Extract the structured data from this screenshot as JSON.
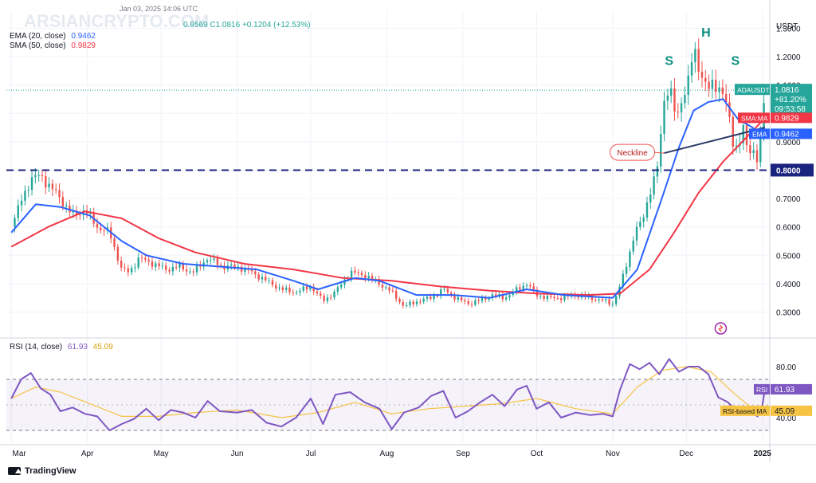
{
  "header": {
    "watermark": "ARSIANCRYPTO.COM",
    "date_stamp": "Jan 03, 2025 14:06 UTC",
    "ohlc_line": "0.9569  C1.0816  +0.1204 (+12.53%)",
    "ema_label": "EMA (20, close)",
    "ema_value": "0.9462",
    "sma_label": "SMA (50, close)",
    "sma_value": "0.9829",
    "currency": "USDT"
  },
  "colors": {
    "up": "#26a69a",
    "down": "#ef5350",
    "ema": "#2962ff",
    "sma": "#f23645",
    "neckline": "#2a3a66",
    "support": "#1a237e",
    "rsi": "#7e57c2",
    "rsi_ma": "#f6c343",
    "pattern_label": "#0b8f7f",
    "grid": "#f0f3fa",
    "axis_text": "#131722",
    "price_tag": "#26a69a"
  },
  "chart_data": [
    {
      "type": "candlestick",
      "title": "",
      "symbol": "ADAUSDT",
      "ylabel": "USDT",
      "ylim": [
        0.22,
        1.36
      ],
      "y_ticks": [
        0.3,
        0.4,
        0.5,
        0.6,
        0.7,
        0.8,
        0.9,
        1.0,
        1.1,
        1.2,
        1.3
      ],
      "y_tick_labels": [
        "0.3000",
        "0.4000",
        "0.5000",
        "0.6000",
        "0.7000",
        "0.8000",
        "0.9000",
        "1.0000",
        "1.1000",
        "1.2000",
        "1.3000"
      ],
      "x_ticks": [
        "Mar",
        "Apr",
        "May",
        "Jun",
        "Jul",
        "Aug",
        "Sep",
        "Oct",
        "Nov",
        "Dec",
        "2025"
      ],
      "x_tick_days": [
        0,
        31,
        61,
        92,
        122,
        153,
        184,
        214,
        245,
        275,
        306
      ],
      "x_range_days": [
        -2,
        309
      ],
      "close_path": [
        {
          "d": 0,
          "v": 0.6
        },
        {
          "d": 4,
          "v": 0.69
        },
        {
          "d": 8,
          "v": 0.77
        },
        {
          "d": 12,
          "v": 0.78
        },
        {
          "d": 16,
          "v": 0.74
        },
        {
          "d": 20,
          "v": 0.7
        },
        {
          "d": 25,
          "v": 0.64
        },
        {
          "d": 30,
          "v": 0.66
        },
        {
          "d": 35,
          "v": 0.6
        },
        {
          "d": 40,
          "v": 0.58
        },
        {
          "d": 45,
          "v": 0.45
        },
        {
          "d": 48,
          "v": 0.44
        },
        {
          "d": 52,
          "v": 0.49
        },
        {
          "d": 58,
          "v": 0.47
        },
        {
          "d": 63,
          "v": 0.45
        },
        {
          "d": 68,
          "v": 0.46
        },
        {
          "d": 74,
          "v": 0.44
        },
        {
          "d": 80,
          "v": 0.49
        },
        {
          "d": 86,
          "v": 0.46
        },
        {
          "d": 92,
          "v": 0.46
        },
        {
          "d": 98,
          "v": 0.44
        },
        {
          "d": 104,
          "v": 0.41
        },
        {
          "d": 110,
          "v": 0.38
        },
        {
          "d": 116,
          "v": 0.37
        },
        {
          "d": 122,
          "v": 0.39
        },
        {
          "d": 127,
          "v": 0.34
        },
        {
          "d": 132,
          "v": 0.37
        },
        {
          "d": 138,
          "v": 0.44
        },
        {
          "d": 144,
          "v": 0.43
        },
        {
          "d": 150,
          "v": 0.4
        },
        {
          "d": 155,
          "v": 0.37
        },
        {
          "d": 160,
          "v": 0.32
        },
        {
          "d": 166,
          "v": 0.34
        },
        {
          "d": 171,
          "v": 0.35
        },
        {
          "d": 176,
          "v": 0.38
        },
        {
          "d": 181,
          "v": 0.35
        },
        {
          "d": 186,
          "v": 0.33
        },
        {
          "d": 191,
          "v": 0.34
        },
        {
          "d": 196,
          "v": 0.36
        },
        {
          "d": 201,
          "v": 0.35
        },
        {
          "d": 206,
          "v": 0.38
        },
        {
          "d": 210,
          "v": 0.4
        },
        {
          "d": 214,
          "v": 0.36
        },
        {
          "d": 219,
          "v": 0.35
        },
        {
          "d": 224,
          "v": 0.35
        },
        {
          "d": 230,
          "v": 0.36
        },
        {
          "d": 236,
          "v": 0.35
        },
        {
          "d": 241,
          "v": 0.34
        },
        {
          "d": 245,
          "v": 0.33
        },
        {
          "d": 248,
          "v": 0.39
        },
        {
          "d": 251,
          "v": 0.48
        },
        {
          "d": 254,
          "v": 0.58
        },
        {
          "d": 257,
          "v": 0.62
        },
        {
          "d": 260,
          "v": 0.72
        },
        {
          "d": 263,
          "v": 0.79
        },
        {
          "d": 266,
          "v": 1.05
        },
        {
          "d": 268,
          "v": 1.1
        },
        {
          "d": 271,
          "v": 0.97
        },
        {
          "d": 273,
          "v": 1.05
        },
        {
          "d": 276,
          "v": 1.12
        },
        {
          "d": 278,
          "v": 1.22
        },
        {
          "d": 280,
          "v": 1.17
        },
        {
          "d": 282,
          "v": 1.12
        },
        {
          "d": 284,
          "v": 1.08
        },
        {
          "d": 286,
          "v": 1.1
        },
        {
          "d": 288,
          "v": 1.1
        },
        {
          "d": 290,
          "v": 1.07
        },
        {
          "d": 292,
          "v": 1.0
        },
        {
          "d": 294,
          "v": 0.9
        },
        {
          "d": 296,
          "v": 0.88
        },
        {
          "d": 298,
          "v": 0.95
        },
        {
          "d": 300,
          "v": 0.86
        },
        {
          "d": 302,
          "v": 0.88
        },
        {
          "d": 304,
          "v": 0.84
        },
        {
          "d": 306,
          "v": 0.96
        },
        {
          "d": 307,
          "v": 1.08
        }
      ],
      "ema_20": [
        {
          "d": 0,
          "v": 0.58
        },
        {
          "d": 10,
          "v": 0.68
        },
        {
          "d": 20,
          "v": 0.67
        },
        {
          "d": 32,
          "v": 0.64
        },
        {
          "d": 45,
          "v": 0.55
        },
        {
          "d": 55,
          "v": 0.5
        },
        {
          "d": 70,
          "v": 0.47
        },
        {
          "d": 85,
          "v": 0.46
        },
        {
          "d": 100,
          "v": 0.45
        },
        {
          "d": 115,
          "v": 0.41
        },
        {
          "d": 125,
          "v": 0.38
        },
        {
          "d": 140,
          "v": 0.42
        },
        {
          "d": 150,
          "v": 0.41
        },
        {
          "d": 165,
          "v": 0.36
        },
        {
          "d": 180,
          "v": 0.36
        },
        {
          "d": 195,
          "v": 0.35
        },
        {
          "d": 210,
          "v": 0.38
        },
        {
          "d": 225,
          "v": 0.36
        },
        {
          "d": 245,
          "v": 0.35
        },
        {
          "d": 255,
          "v": 0.45
        },
        {
          "d": 265,
          "v": 0.7
        },
        {
          "d": 272,
          "v": 0.88
        },
        {
          "d": 278,
          "v": 1.01
        },
        {
          "d": 284,
          "v": 1.04
        },
        {
          "d": 290,
          "v": 1.05
        },
        {
          "d": 296,
          "v": 0.98
        },
        {
          "d": 302,
          "v": 0.95
        },
        {
          "d": 305,
          "v": 0.92
        },
        {
          "d": 307,
          "v": 0.946
        }
      ],
      "sma_50": [
        {
          "d": 0,
          "v": 0.53
        },
        {
          "d": 15,
          "v": 0.6
        },
        {
          "d": 30,
          "v": 0.655
        },
        {
          "d": 45,
          "v": 0.63
        },
        {
          "d": 60,
          "v": 0.56
        },
        {
          "d": 75,
          "v": 0.51
        },
        {
          "d": 95,
          "v": 0.47
        },
        {
          "d": 115,
          "v": 0.45
        },
        {
          "d": 135,
          "v": 0.42
        },
        {
          "d": 155,
          "v": 0.41
        },
        {
          "d": 175,
          "v": 0.39
        },
        {
          "d": 195,
          "v": 0.375
        },
        {
          "d": 215,
          "v": 0.365
        },
        {
          "d": 235,
          "v": 0.36
        },
        {
          "d": 248,
          "v": 0.365
        },
        {
          "d": 260,
          "v": 0.45
        },
        {
          "d": 270,
          "v": 0.58
        },
        {
          "d": 280,
          "v": 0.72
        },
        {
          "d": 290,
          "v": 0.83
        },
        {
          "d": 300,
          "v": 0.92
        },
        {
          "d": 307,
          "v": 0.983
        }
      ],
      "support_level": 0.8,
      "support_label": "0.8000",
      "neckline": {
        "label": "Neckline",
        "from": {
          "d": 266,
          "v": 0.86
        },
        "to": {
          "d": 307,
          "v": 0.95
        }
      },
      "last_close_level": 1.0816,
      "pattern_labels": [
        {
          "text": "S",
          "d": 268,
          "v": 1.17
        },
        {
          "text": "H",
          "d": 283,
          "v": 1.27
        },
        {
          "text": "S",
          "d": 295,
          "v": 1.17
        }
      ],
      "price_tags": {
        "symbol_tag": "ADAUSDT",
        "last_price": "1.0816",
        "last_change": "+81.20%",
        "countdown": "09:53:58",
        "sma_tag": "SMA:MA",
        "sma_price": "0.9829",
        "ema_tag": "EMA",
        "ema_price": "0.9462"
      }
    },
    {
      "type": "line",
      "title": "RSI (14, close)",
      "legend": {
        "rsi": "61.93",
        "rsi_ma": "45.09"
      },
      "ylim": [
        20,
        100
      ],
      "y_ticks": [
        40,
        80
      ],
      "y_tick_labels": [
        "40.00",
        "80.00"
      ],
      "bands": [
        30,
        70
      ],
      "rsi": [
        {
          "d": 0,
          "v": 55
        },
        {
          "d": 4,
          "v": 70
        },
        {
          "d": 8,
          "v": 75
        },
        {
          "d": 12,
          "v": 63
        },
        {
          "d": 16,
          "v": 58
        },
        {
          "d": 20,
          "v": 45
        },
        {
          "d": 25,
          "v": 48
        },
        {
          "d": 30,
          "v": 43
        },
        {
          "d": 35,
          "v": 41
        },
        {
          "d": 40,
          "v": 30
        },
        {
          "d": 45,
          "v": 35
        },
        {
          "d": 50,
          "v": 39
        },
        {
          "d": 55,
          "v": 47
        },
        {
          "d": 60,
          "v": 38
        },
        {
          "d": 65,
          "v": 46
        },
        {
          "d": 70,
          "v": 44
        },
        {
          "d": 75,
          "v": 40
        },
        {
          "d": 80,
          "v": 53
        },
        {
          "d": 85,
          "v": 45
        },
        {
          "d": 92,
          "v": 44
        },
        {
          "d": 98,
          "v": 46
        },
        {
          "d": 104,
          "v": 36
        },
        {
          "d": 110,
          "v": 33
        },
        {
          "d": 116,
          "v": 40
        },
        {
          "d": 122,
          "v": 55
        },
        {
          "d": 127,
          "v": 35
        },
        {
          "d": 132,
          "v": 58
        },
        {
          "d": 138,
          "v": 60
        },
        {
          "d": 144,
          "v": 52
        },
        {
          "d": 150,
          "v": 47
        },
        {
          "d": 155,
          "v": 31
        },
        {
          "d": 160,
          "v": 44
        },
        {
          "d": 166,
          "v": 48
        },
        {
          "d": 171,
          "v": 57
        },
        {
          "d": 176,
          "v": 61
        },
        {
          "d": 181,
          "v": 40
        },
        {
          "d": 186,
          "v": 45
        },
        {
          "d": 191,
          "v": 52
        },
        {
          "d": 196,
          "v": 58
        },
        {
          "d": 201,
          "v": 49
        },
        {
          "d": 206,
          "v": 62
        },
        {
          "d": 210,
          "v": 65
        },
        {
          "d": 214,
          "v": 47
        },
        {
          "d": 219,
          "v": 52
        },
        {
          "d": 224,
          "v": 40
        },
        {
          "d": 230,
          "v": 44
        },
        {
          "d": 236,
          "v": 42
        },
        {
          "d": 241,
          "v": 43
        },
        {
          "d": 245,
          "v": 41
        },
        {
          "d": 248,
          "v": 62
        },
        {
          "d": 252,
          "v": 82
        },
        {
          "d": 256,
          "v": 78
        },
        {
          "d": 260,
          "v": 83
        },
        {
          "d": 264,
          "v": 74
        },
        {
          "d": 268,
          "v": 86
        },
        {
          "d": 272,
          "v": 76
        },
        {
          "d": 276,
          "v": 80
        },
        {
          "d": 280,
          "v": 80
        },
        {
          "d": 284,
          "v": 74
        },
        {
          "d": 288,
          "v": 56
        },
        {
          "d": 292,
          "v": 52
        },
        {
          "d": 296,
          "v": 44
        },
        {
          "d": 298,
          "v": 49
        },
        {
          "d": 300,
          "v": 42
        },
        {
          "d": 302,
          "v": 44
        },
        {
          "d": 304,
          "v": 41
        },
        {
          "d": 306,
          "v": 50
        },
        {
          "d": 307,
          "v": 61.93
        }
      ],
      "rsi_ma": [
        {
          "d": 0,
          "v": 55
        },
        {
          "d": 10,
          "v": 64
        },
        {
          "d": 20,
          "v": 60
        },
        {
          "d": 32,
          "v": 51
        },
        {
          "d": 45,
          "v": 41
        },
        {
          "d": 60,
          "v": 41
        },
        {
          "d": 75,
          "v": 44
        },
        {
          "d": 92,
          "v": 46
        },
        {
          "d": 110,
          "v": 40
        },
        {
          "d": 125,
          "v": 44
        },
        {
          "d": 140,
          "v": 52
        },
        {
          "d": 155,
          "v": 43
        },
        {
          "d": 170,
          "v": 47
        },
        {
          "d": 185,
          "v": 49
        },
        {
          "d": 200,
          "v": 51
        },
        {
          "d": 214,
          "v": 55
        },
        {
          "d": 230,
          "v": 47
        },
        {
          "d": 245,
          "v": 43
        },
        {
          "d": 255,
          "v": 64
        },
        {
          "d": 265,
          "v": 77
        },
        {
          "d": 275,
          "v": 80
        },
        {
          "d": 285,
          "v": 76
        },
        {
          "d": 295,
          "v": 58
        },
        {
          "d": 302,
          "v": 47
        },
        {
          "d": 307,
          "v": 45.09
        }
      ],
      "tags": {
        "rsi_tag": "RSI",
        "rsi_value": "61.93",
        "ma_tag": "RSI-based MA",
        "ma_value": "45.09"
      }
    }
  ],
  "footer": {
    "brand": "TradingView"
  }
}
